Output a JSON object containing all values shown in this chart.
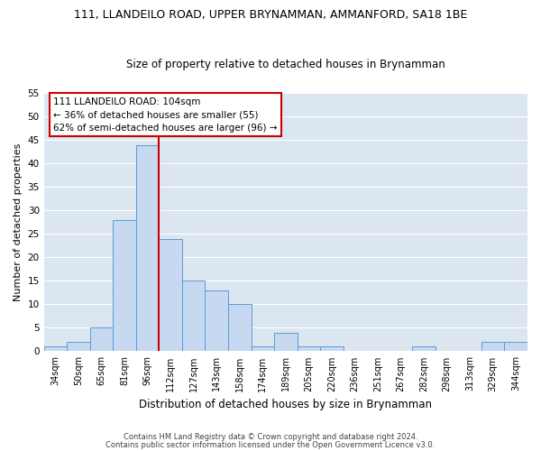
{
  "title": "111, LLANDEILO ROAD, UPPER BRYNAMMAN, AMMANFORD, SA18 1BE",
  "subtitle": "Size of property relative to detached houses in Brynamman",
  "xlabel": "Distribution of detached houses by size in Brynamman",
  "ylabel": "Number of detached properties",
  "categories": [
    "34sqm",
    "50sqm",
    "65sqm",
    "81sqm",
    "96sqm",
    "112sqm",
    "127sqm",
    "143sqm",
    "158sqm",
    "174sqm",
    "189sqm",
    "205sqm",
    "220sqm",
    "236sqm",
    "251sqm",
    "267sqm",
    "282sqm",
    "298sqm",
    "313sqm",
    "329sqm",
    "344sqm"
  ],
  "values": [
    1,
    2,
    5,
    28,
    44,
    24,
    15,
    13,
    10,
    1,
    4,
    1,
    1,
    0,
    0,
    0,
    1,
    0,
    0,
    2,
    2
  ],
  "bar_color": "#c6d9f0",
  "bar_edge_color": "#5b9bd5",
  "plot_bg_color": "#dce6f1",
  "fig_bg_color": "#ffffff",
  "grid_color": "#ffffff",
  "annotation_box_text": "111 LLANDEILO ROAD: 104sqm\n← 36% of detached houses are smaller (55)\n62% of semi-detached houses are larger (96) →",
  "annotation_box_color": "#ffffff",
  "annotation_box_edge_color": "#cc0000",
  "vline_color": "#cc0000",
  "vline_x": 4.5,
  "ylim": [
    0,
    55
  ],
  "yticks": [
    0,
    5,
    10,
    15,
    20,
    25,
    30,
    35,
    40,
    45,
    50,
    55
  ],
  "footnote1": "Contains HM Land Registry data © Crown copyright and database right 2024.",
  "footnote2": "Contains public sector information licensed under the Open Government Licence v3.0.",
  "title_fontsize": 9,
  "subtitle_fontsize": 8.5,
  "xlabel_fontsize": 8.5,
  "ylabel_fontsize": 8,
  "xtick_fontsize": 7,
  "ytick_fontsize": 7.5,
  "annotation_fontsize": 7.5,
  "footnote_fontsize": 6
}
